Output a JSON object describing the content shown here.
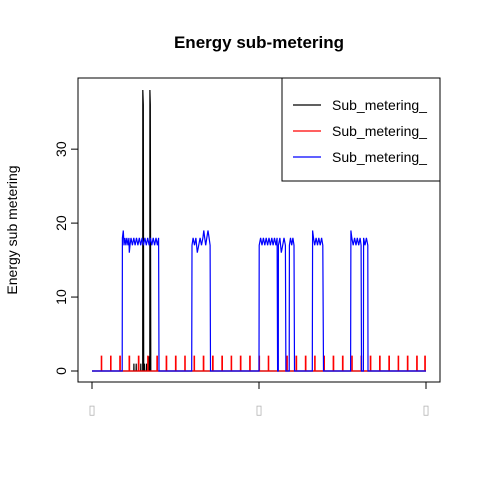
{
  "chart_data": {
    "type": "line",
    "title": "Energy sub-metering",
    "xlabel": "",
    "ylabel": "Energy sub metering",
    "x_tick_labels": [
      "▯",
      "▯",
      "▯"
    ],
    "y_ticks": [
      0,
      10,
      20,
      30
    ],
    "xlim": [
      0,
      2880
    ],
    "ylim": [
      0,
      38
    ],
    "legend_position": "top-right",
    "grid": false,
    "series": [
      {
        "name": "Sub_metering_",
        "color": "#000000",
        "points": [
          [
            0,
            0
          ],
          [
            360,
            0
          ],
          [
            361,
            1
          ],
          [
            362,
            0
          ],
          [
            380,
            0
          ],
          [
            381,
            1
          ],
          [
            382,
            0
          ],
          [
            400,
            0
          ],
          [
            401,
            1
          ],
          [
            402,
            0
          ],
          [
            420,
            0
          ],
          [
            421,
            1
          ],
          [
            422,
            0
          ],
          [
            437,
            0
          ],
          [
            438,
            38
          ],
          [
            442,
            36
          ],
          [
            446,
            0
          ],
          [
            452,
            0
          ],
          [
            453,
            1
          ],
          [
            454,
            0
          ],
          [
            470,
            0
          ],
          [
            471,
            1
          ],
          [
            472,
            0
          ],
          [
            488,
            0
          ],
          [
            490,
            2
          ],
          [
            492,
            0
          ],
          [
            498,
            0
          ],
          [
            499,
            38
          ],
          [
            503,
            36
          ],
          [
            507,
            0
          ],
          [
            520,
            0
          ],
          [
            2880,
            0
          ]
        ]
      },
      {
        "name": "Sub_metering_",
        "color": "#ff0000",
        "points": [
          [
            0,
            0
          ],
          [
            80,
            0
          ],
          [
            80,
            2
          ],
          [
            84,
            2
          ],
          [
            84,
            0
          ],
          [
            160,
            0
          ],
          [
            160,
            2
          ],
          [
            164,
            2
          ],
          [
            164,
            0
          ],
          [
            240,
            0
          ],
          [
            240,
            2
          ],
          [
            244,
            2
          ],
          [
            244,
            0
          ],
          [
            320,
            0
          ],
          [
            320,
            2
          ],
          [
            324,
            2
          ],
          [
            324,
            0
          ],
          [
            400,
            0
          ],
          [
            400,
            2
          ],
          [
            404,
            2
          ],
          [
            404,
            0
          ],
          [
            480,
            0
          ],
          [
            480,
            2
          ],
          [
            484,
            2
          ],
          [
            484,
            0
          ],
          [
            560,
            0
          ],
          [
            560,
            2
          ],
          [
            564,
            2
          ],
          [
            564,
            0
          ],
          [
            640,
            0
          ],
          [
            640,
            2
          ],
          [
            644,
            2
          ],
          [
            644,
            0
          ],
          [
            720,
            0
          ],
          [
            720,
            2
          ],
          [
            724,
            2
          ],
          [
            724,
            0
          ],
          [
            800,
            0
          ],
          [
            800,
            2
          ],
          [
            804,
            2
          ],
          [
            804,
            0
          ],
          [
            880,
            0
          ],
          [
            880,
            2
          ],
          [
            884,
            2
          ],
          [
            884,
            0
          ],
          [
            960,
            0
          ],
          [
            960,
            2
          ],
          [
            964,
            2
          ],
          [
            964,
            0
          ],
          [
            1040,
            0
          ],
          [
            1040,
            2
          ],
          [
            1044,
            2
          ],
          [
            1044,
            0
          ],
          [
            1120,
            0
          ],
          [
            1120,
            2
          ],
          [
            1124,
            2
          ],
          [
            1124,
            0
          ],
          [
            1200,
            0
          ],
          [
            1200,
            2
          ],
          [
            1204,
            2
          ],
          [
            1204,
            0
          ],
          [
            1280,
            0
          ],
          [
            1280,
            2
          ],
          [
            1284,
            2
          ],
          [
            1284,
            0
          ],
          [
            1360,
            0
          ],
          [
            1360,
            2
          ],
          [
            1364,
            2
          ],
          [
            1364,
            0
          ],
          [
            1440,
            0
          ],
          [
            1440,
            2
          ],
          [
            1444,
            2
          ],
          [
            1444,
            0
          ],
          [
            1520,
            0
          ],
          [
            1520,
            2
          ],
          [
            1524,
            2
          ],
          [
            1524,
            0
          ],
          [
            1600,
            0
          ],
          [
            1600,
            2
          ],
          [
            1604,
            2
          ],
          [
            1604,
            0
          ],
          [
            1680,
            0
          ],
          [
            1680,
            2
          ],
          [
            1684,
            2
          ],
          [
            1684,
            0
          ],
          [
            1760,
            0
          ],
          [
            1760,
            2
          ],
          [
            1764,
            2
          ],
          [
            1764,
            0
          ],
          [
            1840,
            0
          ],
          [
            1840,
            2
          ],
          [
            1844,
            2
          ],
          [
            1844,
            0
          ],
          [
            1920,
            0
          ],
          [
            1920,
            2
          ],
          [
            1924,
            2
          ],
          [
            1924,
            0
          ],
          [
            2000,
            0
          ],
          [
            2000,
            2
          ],
          [
            2004,
            2
          ],
          [
            2004,
            0
          ],
          [
            2080,
            0
          ],
          [
            2080,
            2
          ],
          [
            2084,
            2
          ],
          [
            2084,
            0
          ],
          [
            2160,
            0
          ],
          [
            2160,
            2
          ],
          [
            2164,
            2
          ],
          [
            2164,
            0
          ],
          [
            2240,
            0
          ],
          [
            2240,
            2
          ],
          [
            2244,
            2
          ],
          [
            2244,
            0
          ],
          [
            2320,
            0
          ],
          [
            2320,
            2
          ],
          [
            2324,
            2
          ],
          [
            2324,
            0
          ],
          [
            2400,
            0
          ],
          [
            2400,
            2
          ],
          [
            2404,
            2
          ],
          [
            2404,
            0
          ],
          [
            2480,
            0
          ],
          [
            2480,
            2
          ],
          [
            2484,
            2
          ],
          [
            2484,
            0
          ],
          [
            2560,
            0
          ],
          [
            2560,
            2
          ],
          [
            2564,
            2
          ],
          [
            2564,
            0
          ],
          [
            2640,
            0
          ],
          [
            2640,
            2
          ],
          [
            2644,
            2
          ],
          [
            2644,
            0
          ],
          [
            2720,
            0
          ],
          [
            2720,
            2
          ],
          [
            2724,
            2
          ],
          [
            2724,
            0
          ],
          [
            2800,
            0
          ],
          [
            2800,
            2
          ],
          [
            2804,
            2
          ],
          [
            2804,
            0
          ],
          [
            2870,
            0
          ],
          [
            2870,
            2
          ],
          [
            2874,
            2
          ],
          [
            2874,
            0
          ],
          [
            2880,
            0
          ]
        ]
      },
      {
        "name": "Sub_metering_",
        "color": "#0000ff",
        "points": [
          [
            0,
            0
          ],
          [
            260,
            0
          ],
          [
            262,
            18
          ],
          [
            270,
            19
          ],
          [
            276,
            17
          ],
          [
            284,
            18
          ],
          [
            292,
            17
          ],
          [
            300,
            18
          ],
          [
            310,
            17
          ],
          [
            318,
            18
          ],
          [
            322,
            16
          ],
          [
            328,
            17
          ],
          [
            336,
            18
          ],
          [
            348,
            17
          ],
          [
            360,
            18
          ],
          [
            372,
            17
          ],
          [
            384,
            18
          ],
          [
            396,
            17
          ],
          [
            408,
            18
          ],
          [
            420,
            17
          ],
          [
            432,
            18
          ],
          [
            444,
            17
          ],
          [
            456,
            18
          ],
          [
            468,
            17
          ],
          [
            480,
            18
          ],
          [
            492,
            17
          ],
          [
            504,
            18
          ],
          [
            516,
            17
          ],
          [
            528,
            18
          ],
          [
            540,
            17
          ],
          [
            552,
            18
          ],
          [
            564,
            17
          ],
          [
            574,
            18
          ],
          [
            578,
            0
          ],
          [
            860,
            0
          ],
          [
            862,
            17
          ],
          [
            872,
            18
          ],
          [
            884,
            17
          ],
          [
            896,
            18
          ],
          [
            908,
            16
          ],
          [
            920,
            17
          ],
          [
            932,
            18
          ],
          [
            944,
            17
          ],
          [
            956,
            18
          ],
          [
            964,
            19
          ],
          [
            972,
            18
          ],
          [
            980,
            17
          ],
          [
            990,
            18
          ],
          [
            1000,
            19
          ],
          [
            1010,
            18
          ],
          [
            1018,
            17
          ],
          [
            1022,
            0
          ],
          [
            1440,
            0
          ],
          [
            1442,
            17
          ],
          [
            1454,
            18
          ],
          [
            1466,
            17
          ],
          [
            1478,
            18
          ],
          [
            1490,
            17
          ],
          [
            1502,
            18
          ],
          [
            1514,
            17
          ],
          [
            1526,
            18
          ],
          [
            1538,
            17
          ],
          [
            1550,
            18
          ],
          [
            1562,
            17
          ],
          [
            1574,
            18
          ],
          [
            1586,
            17
          ],
          [
            1596,
            18
          ],
          [
            1600,
            0
          ],
          [
            1606,
            0
          ],
          [
            1607,
            17
          ],
          [
            1620,
            18
          ],
          [
            1632,
            16
          ],
          [
            1644,
            17
          ],
          [
            1656,
            18
          ],
          [
            1668,
            17
          ],
          [
            1672,
            0
          ],
          [
            1700,
            0
          ],
          [
            1702,
            17
          ],
          [
            1712,
            18
          ],
          [
            1722,
            17
          ],
          [
            1732,
            18
          ],
          [
            1742,
            17
          ],
          [
            1746,
            0
          ],
          [
            1900,
            0
          ],
          [
            1902,
            19
          ],
          [
            1910,
            18
          ],
          [
            1920,
            17
          ],
          [
            1932,
            18
          ],
          [
            1944,
            17
          ],
          [
            1956,
            18
          ],
          [
            1968,
            17
          ],
          [
            1980,
            18
          ],
          [
            1990,
            17
          ],
          [
            1996,
            0
          ],
          [
            2230,
            0
          ],
          [
            2232,
            19
          ],
          [
            2240,
            18
          ],
          [
            2252,
            17
          ],
          [
            2264,
            18
          ],
          [
            2276,
            17
          ],
          [
            2288,
            18
          ],
          [
            2300,
            17
          ],
          [
            2312,
            18
          ],
          [
            2320,
            17
          ],
          [
            2324,
            0
          ],
          [
            2340,
            0
          ],
          [
            2342,
            18
          ],
          [
            2354,
            17
          ],
          [
            2366,
            18
          ],
          [
            2378,
            17
          ],
          [
            2380,
            0
          ],
          [
            2870,
            0
          ],
          [
            2880,
            0
          ]
        ]
      }
    ]
  }
}
